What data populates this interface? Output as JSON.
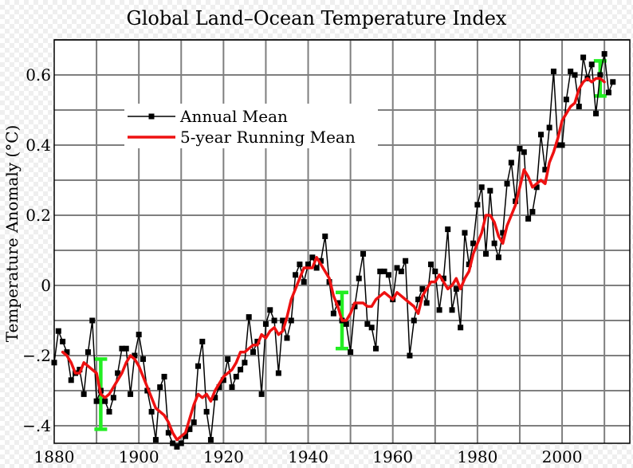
{
  "chart_data": {
    "type": "line",
    "title": "Global Land–Ocean Temperature Index",
    "xlabel": "",
    "ylabel": "Temperature Anomaly (°C)",
    "xlim": [
      1880,
      2016
    ],
    "ylim": [
      -0.45,
      0.7
    ],
    "xticks": [
      1880,
      1900,
      1920,
      1940,
      1960,
      1980,
      2000
    ],
    "yticks": [
      -0.4,
      -0.2,
      0,
      0.2,
      0.4,
      0.6
    ],
    "ytick_labels": [
      "−.4",
      "−.2",
      "0",
      "0.2",
      "0.4",
      "0.6"
    ],
    "grid": true,
    "legend": "upper-left",
    "series": [
      {
        "name": "Annual Mean",
        "color": "#000000",
        "marker": "square",
        "x": [
          1880,
          1881,
          1882,
          1883,
          1884,
          1885,
          1886,
          1887,
          1888,
          1889,
          1890,
          1891,
          1892,
          1893,
          1894,
          1895,
          1896,
          1897,
          1898,
          1899,
          1900,
          1901,
          1902,
          1903,
          1904,
          1905,
          1906,
          1907,
          1908,
          1909,
          1910,
          1911,
          1912,
          1913,
          1914,
          1915,
          1916,
          1917,
          1918,
          1919,
          1920,
          1921,
          1922,
          1923,
          1924,
          1925,
          1926,
          1927,
          1928,
          1929,
          1930,
          1931,
          1932,
          1933,
          1934,
          1935,
          1936,
          1937,
          1938,
          1939,
          1940,
          1941,
          1942,
          1943,
          1944,
          1945,
          1946,
          1947,
          1948,
          1949,
          1950,
          1951,
          1952,
          1953,
          1954,
          1955,
          1956,
          1957,
          1958,
          1959,
          1960,
          1961,
          1962,
          1963,
          1964,
          1965,
          1966,
          1967,
          1968,
          1969,
          1970,
          1971,
          1972,
          1973,
          1974,
          1975,
          1976,
          1977,
          1978,
          1979,
          1980,
          1981,
          1982,
          1983,
          1984,
          1985,
          1986,
          1987,
          1988,
          1989,
          1990,
          1991,
          1992,
          1993,
          1994,
          1995,
          1996,
          1997,
          1998,
          1999,
          2000,
          2001,
          2002,
          2003,
          2004,
          2005,
          2006,
          2007,
          2008,
          2009,
          2010,
          2011,
          2012
        ],
        "values": [
          -0.22,
          -0.13,
          -0.16,
          -0.19,
          -0.27,
          -0.25,
          -0.24,
          -0.31,
          -0.19,
          -0.1,
          -0.33,
          -0.3,
          -0.33,
          -0.36,
          -0.32,
          -0.25,
          -0.18,
          -0.18,
          -0.31,
          -0.2,
          -0.14,
          -0.21,
          -0.3,
          -0.36,
          -0.44,
          -0.29,
          -0.26,
          -0.42,
          -0.45,
          -0.46,
          -0.45,
          -0.43,
          -0.41,
          -0.39,
          -0.23,
          -0.16,
          -0.36,
          -0.44,
          -0.32,
          -0.29,
          -0.27,
          -0.21,
          -0.29,
          -0.26,
          -0.24,
          -0.22,
          -0.09,
          -0.19,
          -0.16,
          -0.31,
          -0.11,
          -0.07,
          -0.1,
          -0.25,
          -0.1,
          -0.15,
          -0.1,
          0.03,
          0.06,
          0.01,
          0.06,
          0.08,
          0.05,
          0.07,
          0.14,
          0.01,
          -0.08,
          -0.05,
          -0.1,
          -0.11,
          -0.19,
          -0.06,
          0.02,
          0.09,
          -0.11,
          -0.12,
          -0.18,
          0.04,
          0.04,
          0.03,
          -0.04,
          0.05,
          0.04,
          0.07,
          -0.2,
          -0.1,
          -0.04,
          -0.01,
          -0.05,
          0.06,
          0.04,
          -0.07,
          0.02,
          0.16,
          -0.07,
          -0.01,
          -0.12,
          0.15,
          0.06,
          0.12,
          0.23,
          0.28,
          0.09,
          0.27,
          0.12,
          0.08,
          0.15,
          0.29,
          0.35,
          0.24,
          0.39,
          0.38,
          0.19,
          0.21,
          0.28,
          0.43,
          0.33,
          0.45,
          0.61,
          0.4,
          0.4,
          0.53,
          0.61,
          0.6,
          0.51,
          0.65,
          0.59,
          0.63,
          0.49,
          0.6,
          0.66,
          0.55,
          0.58
        ]
      },
      {
        "name": "5-year Running Mean",
        "color": "#ee1111",
        "x": [
          1882,
          1883,
          1884,
          1885,
          1886,
          1887,
          1888,
          1889,
          1890,
          1891,
          1892,
          1893,
          1894,
          1895,
          1896,
          1897,
          1898,
          1899,
          1900,
          1901,
          1902,
          1903,
          1904,
          1905,
          1906,
          1907,
          1908,
          1909,
          1910,
          1911,
          1912,
          1913,
          1914,
          1915,
          1916,
          1917,
          1918,
          1919,
          1920,
          1921,
          1922,
          1923,
          1924,
          1925,
          1926,
          1927,
          1928,
          1929,
          1930,
          1931,
          1932,
          1933,
          1934,
          1935,
          1936,
          1937,
          1938,
          1939,
          1940,
          1941,
          1942,
          1943,
          1944,
          1945,
          1946,
          1947,
          1948,
          1949,
          1950,
          1951,
          1952,
          1953,
          1954,
          1955,
          1956,
          1957,
          1958,
          1959,
          1960,
          1961,
          1962,
          1963,
          1964,
          1965,
          1966,
          1967,
          1968,
          1969,
          1970,
          1971,
          1972,
          1973,
          1974,
          1975,
          1976,
          1977,
          1978,
          1979,
          1980,
          1981,
          1982,
          1983,
          1984,
          1985,
          1986,
          1987,
          1988,
          1989,
          1990,
          1991,
          1992,
          1993,
          1994,
          1995,
          1996,
          1997,
          1998,
          1999,
          2000,
          2001,
          2002,
          2003,
          2004,
          2005,
          2006,
          2007,
          2008,
          2009,
          2010
        ],
        "values": [
          -0.19,
          -0.2,
          -0.22,
          -0.25,
          -0.25,
          -0.22,
          -0.23,
          -0.24,
          -0.25,
          -0.31,
          -0.32,
          -0.31,
          -0.29,
          -0.27,
          -0.25,
          -0.22,
          -0.2,
          -0.21,
          -0.23,
          -0.26,
          -0.29,
          -0.32,
          -0.35,
          -0.36,
          -0.37,
          -0.39,
          -0.42,
          -0.44,
          -0.43,
          -0.42,
          -0.38,
          -0.34,
          -0.31,
          -0.32,
          -0.31,
          -0.33,
          -0.3,
          -0.28,
          -0.26,
          -0.25,
          -0.24,
          -0.22,
          -0.19,
          -0.19,
          -0.18,
          -0.17,
          -0.17,
          -0.14,
          -0.15,
          -0.13,
          -0.12,
          -0.14,
          -0.13,
          -0.09,
          -0.04,
          -0.01,
          0.02,
          0.05,
          0.05,
          0.05,
          0.08,
          0.06,
          0.04,
          0.02,
          -0.03,
          -0.06,
          -0.1,
          -0.1,
          -0.08,
          -0.05,
          -0.05,
          -0.05,
          -0.06,
          -0.06,
          -0.04,
          -0.03,
          -0.02,
          -0.03,
          -0.04,
          -0.02,
          -0.03,
          -0.04,
          -0.05,
          -0.06,
          -0.08,
          -0.03,
          -0.01,
          0.01,
          0.01,
          0.03,
          0.01,
          -0.01,
          0.0,
          0.02,
          -0.01,
          0.02,
          0.04,
          0.09,
          0.12,
          0.15,
          0.2,
          0.2,
          0.18,
          0.14,
          0.12,
          0.17,
          0.2,
          0.23,
          0.28,
          0.33,
          0.31,
          0.28,
          0.29,
          0.3,
          0.29,
          0.35,
          0.38,
          0.42,
          0.47,
          0.49,
          0.51,
          0.52,
          0.56,
          0.58,
          0.59,
          0.58,
          0.59,
          0.59,
          0.58
        ]
      }
    ],
    "uncertainty_bars": [
      {
        "x": 1891,
        "low": -0.41,
        "high": -0.21,
        "color": "#22ee22"
      },
      {
        "x": 1948,
        "low": -0.18,
        "high": -0.02,
        "color": "#22ee22"
      },
      {
        "x": 2009,
        "low": 0.54,
        "high": 0.64,
        "color": "#22ee22"
      }
    ]
  }
}
